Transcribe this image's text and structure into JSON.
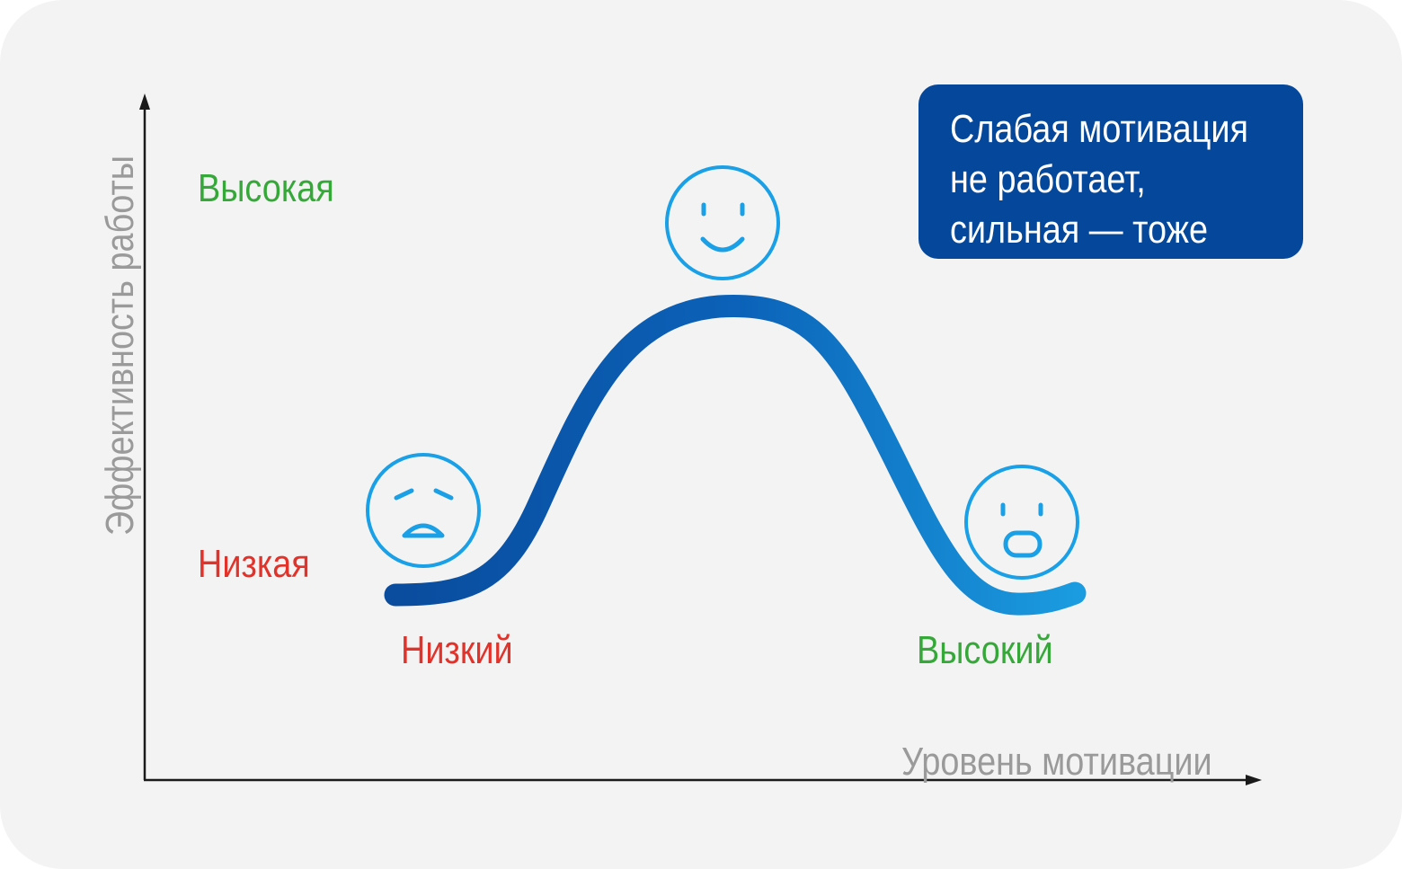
{
  "axes": {
    "y_title": "Эффективность работы",
    "x_title": "Уровень мотивации"
  },
  "y_levels": {
    "high": "Высокая",
    "low": "Низкая"
  },
  "x_levels": {
    "low": "Низкий",
    "high": "Высокий"
  },
  "callout": {
    "lines": [
      "Слабая мотивация",
      "не работает,",
      "сильная — тоже"
    ]
  },
  "faces": {
    "left": "sad-face-icon",
    "top": "happy-face-icon",
    "right": "surprised-face-icon"
  },
  "colors": {
    "curve_dark": "#0a4c9e",
    "curve_light": "#1b9ce0",
    "face_stroke": "#1aa0e6",
    "callout_bg": "#05479a",
    "high_text": "#36a83a",
    "low_text": "#e2322a",
    "axis_text": "#9a9a9a"
  }
}
